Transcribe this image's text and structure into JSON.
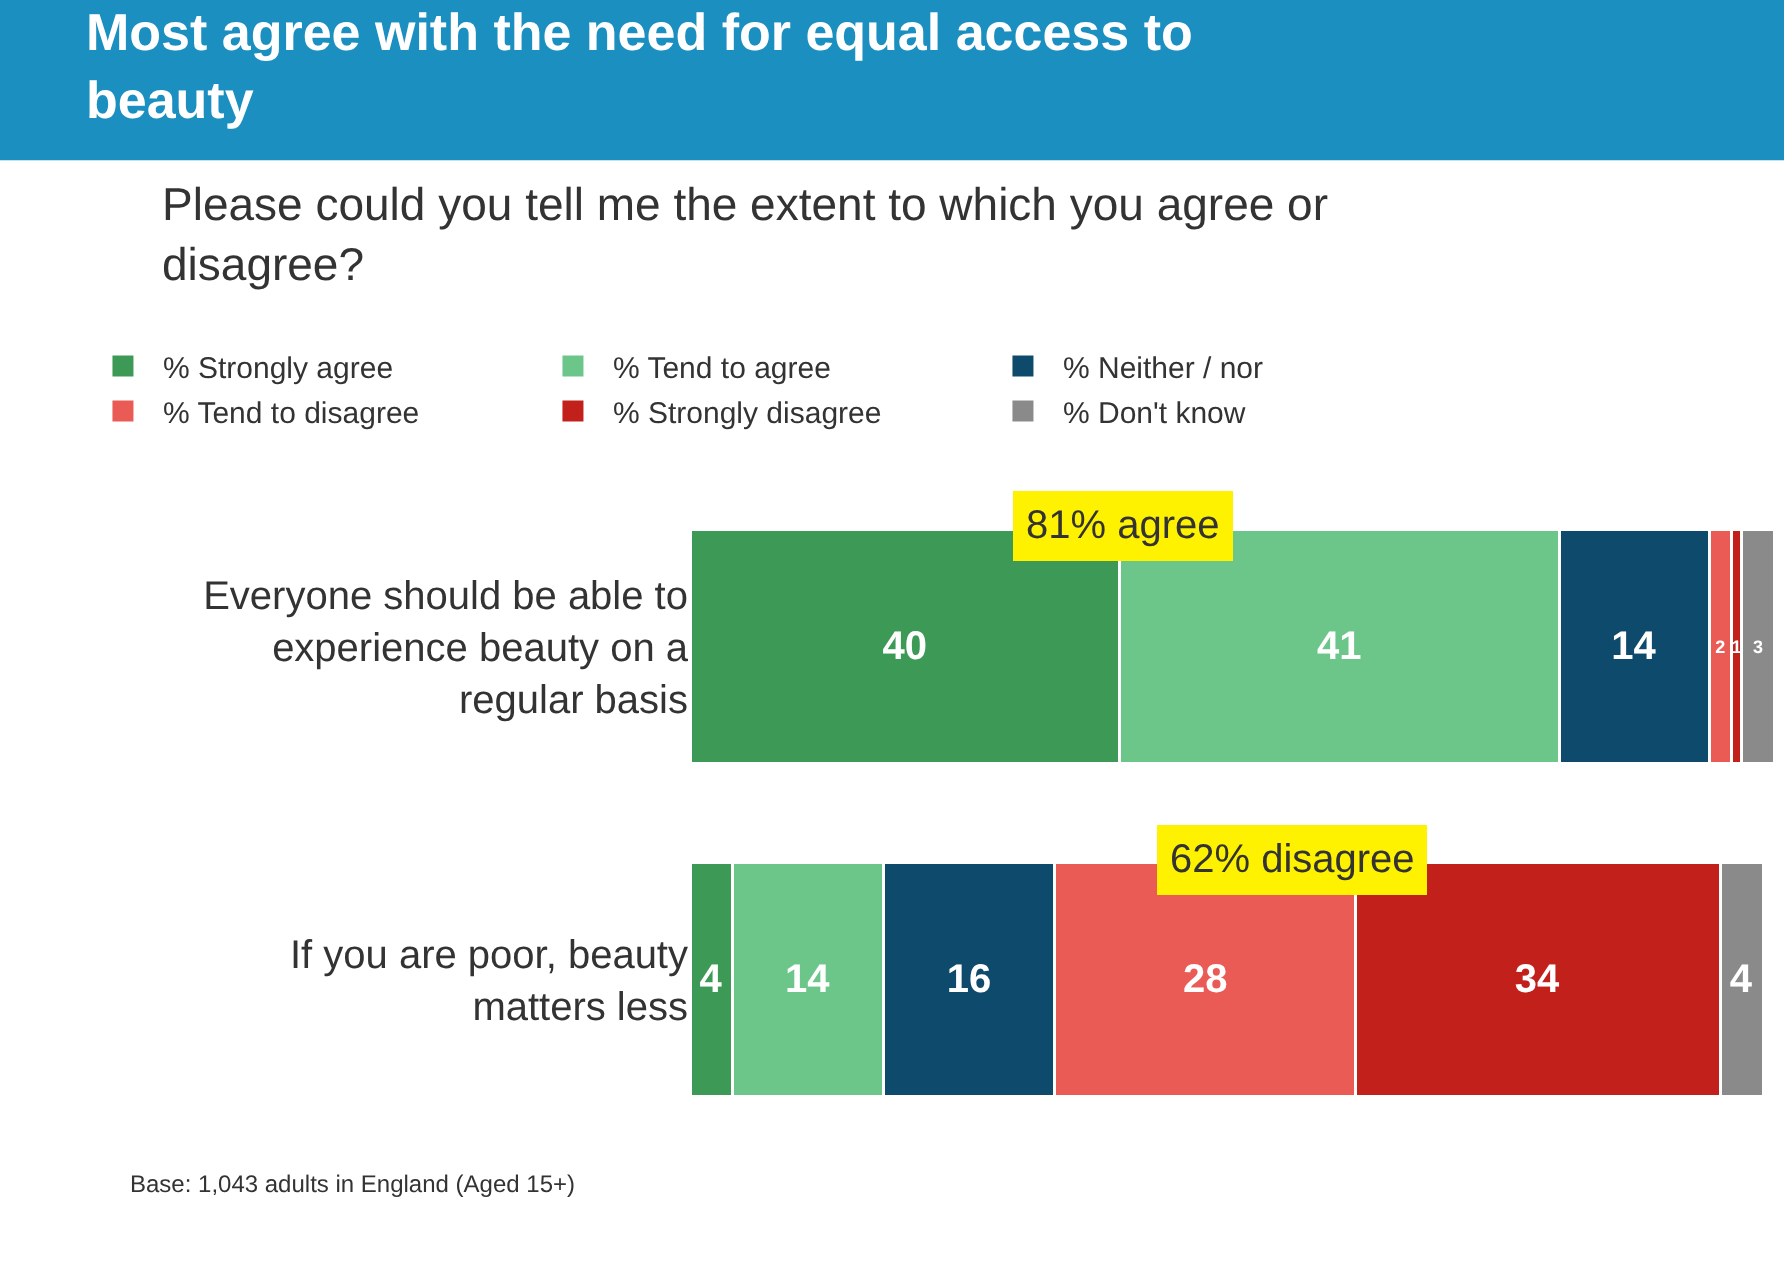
{
  "chart_data": {
    "type": "bar",
    "orientation": "horizontal",
    "stacked": true,
    "title": "Most agree with the need for equal access to beauty",
    "subtitle": "Please could you tell me the extent to which you agree or disagree?",
    "categories": [
      "Everyone should be able to experience beauty on a regular basis",
      "If you are poor, beauty matters less"
    ],
    "series": [
      {
        "name": "% Strongly agree",
        "color": "#3d9a56",
        "values": [
          40,
          4
        ]
      },
      {
        "name": "% Tend to agree",
        "color": "#6cc68a",
        "values": [
          41,
          14
        ]
      },
      {
        "name": "% Neither / nor",
        "color": "#0d4a6b",
        "values": [
          14,
          16
        ]
      },
      {
        "name": "% Tend to disagree",
        "color": "#ea5b55",
        "values": [
          2,
          28
        ]
      },
      {
        "name": "% Strongly disagree",
        "color": "#c1201b",
        "values": [
          1,
          34
        ]
      },
      {
        "name": "% Don't know",
        "color": "#8a8a8a",
        "values": [
          3,
          4
        ]
      }
    ],
    "xlim": [
      0,
      101
    ],
    "data_labels": true,
    "legend": "top",
    "tick_labels": "y",
    "annotations": [
      "81% agree",
      "62% disagree",
      "Base: 1,043 adults in England (Aged 15+)"
    ]
  }
}
